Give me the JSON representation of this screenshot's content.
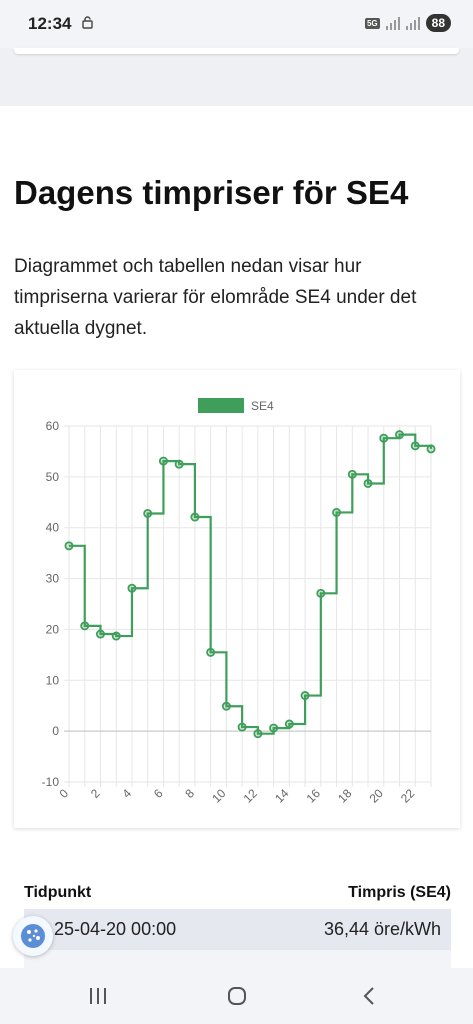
{
  "status_bar": {
    "time": "12:34",
    "network": "5G",
    "battery": "88",
    "icons": [
      "lock-icon",
      "signal-icon",
      "battery-icon"
    ]
  },
  "page": {
    "heading": "Dagens timpriser för SE4",
    "intro": "Diagrammet och tabellen nedan visar hur timpriserna varierar för elområde SE4 under det aktuella dygnet."
  },
  "chart_data": {
    "type": "line",
    "stepped": true,
    "legend": {
      "label": "SE4",
      "placement": "top-center"
    },
    "color": "#3f9f5a",
    "x": [
      0,
      1,
      2,
      3,
      4,
      5,
      6,
      7,
      8,
      9,
      10,
      11,
      12,
      13,
      14,
      15,
      16,
      17,
      18,
      19,
      20,
      21,
      22,
      23
    ],
    "x_ticks": [
      "0",
      "2",
      "4",
      "6",
      "8",
      "10",
      "12",
      "14",
      "16",
      "18",
      "20",
      "22"
    ],
    "y_ticks": [
      "60",
      "50",
      "40",
      "30",
      "20",
      "10",
      "0",
      "-10"
    ],
    "series": [
      {
        "name": "SE4",
        "values": [
          36.44,
          20.7,
          19.1,
          18.7,
          28.1,
          42.8,
          53.1,
          52.5,
          42.1,
          15.5,
          4.9,
          0.8,
          -0.5,
          0.6,
          1.4,
          7.0,
          27.1,
          43.0,
          50.5,
          48.7,
          57.6,
          58.3,
          56.1,
          55.5
        ]
      }
    ],
    "ylim": [
      -10,
      60
    ],
    "xlim": [
      0,
      23
    ],
    "grid": true
  },
  "table": {
    "headers": {
      "time": "Tidpunkt",
      "price": "Timpris (SE4)"
    },
    "rows": [
      {
        "time": "2025-04-20 00:00",
        "time_visible": "25-04-20 00:00",
        "price": "36,44 öre/kWh"
      }
    ]
  },
  "nav": {
    "icons": [
      "recent-apps-icon",
      "home-icon",
      "back-icon"
    ]
  }
}
